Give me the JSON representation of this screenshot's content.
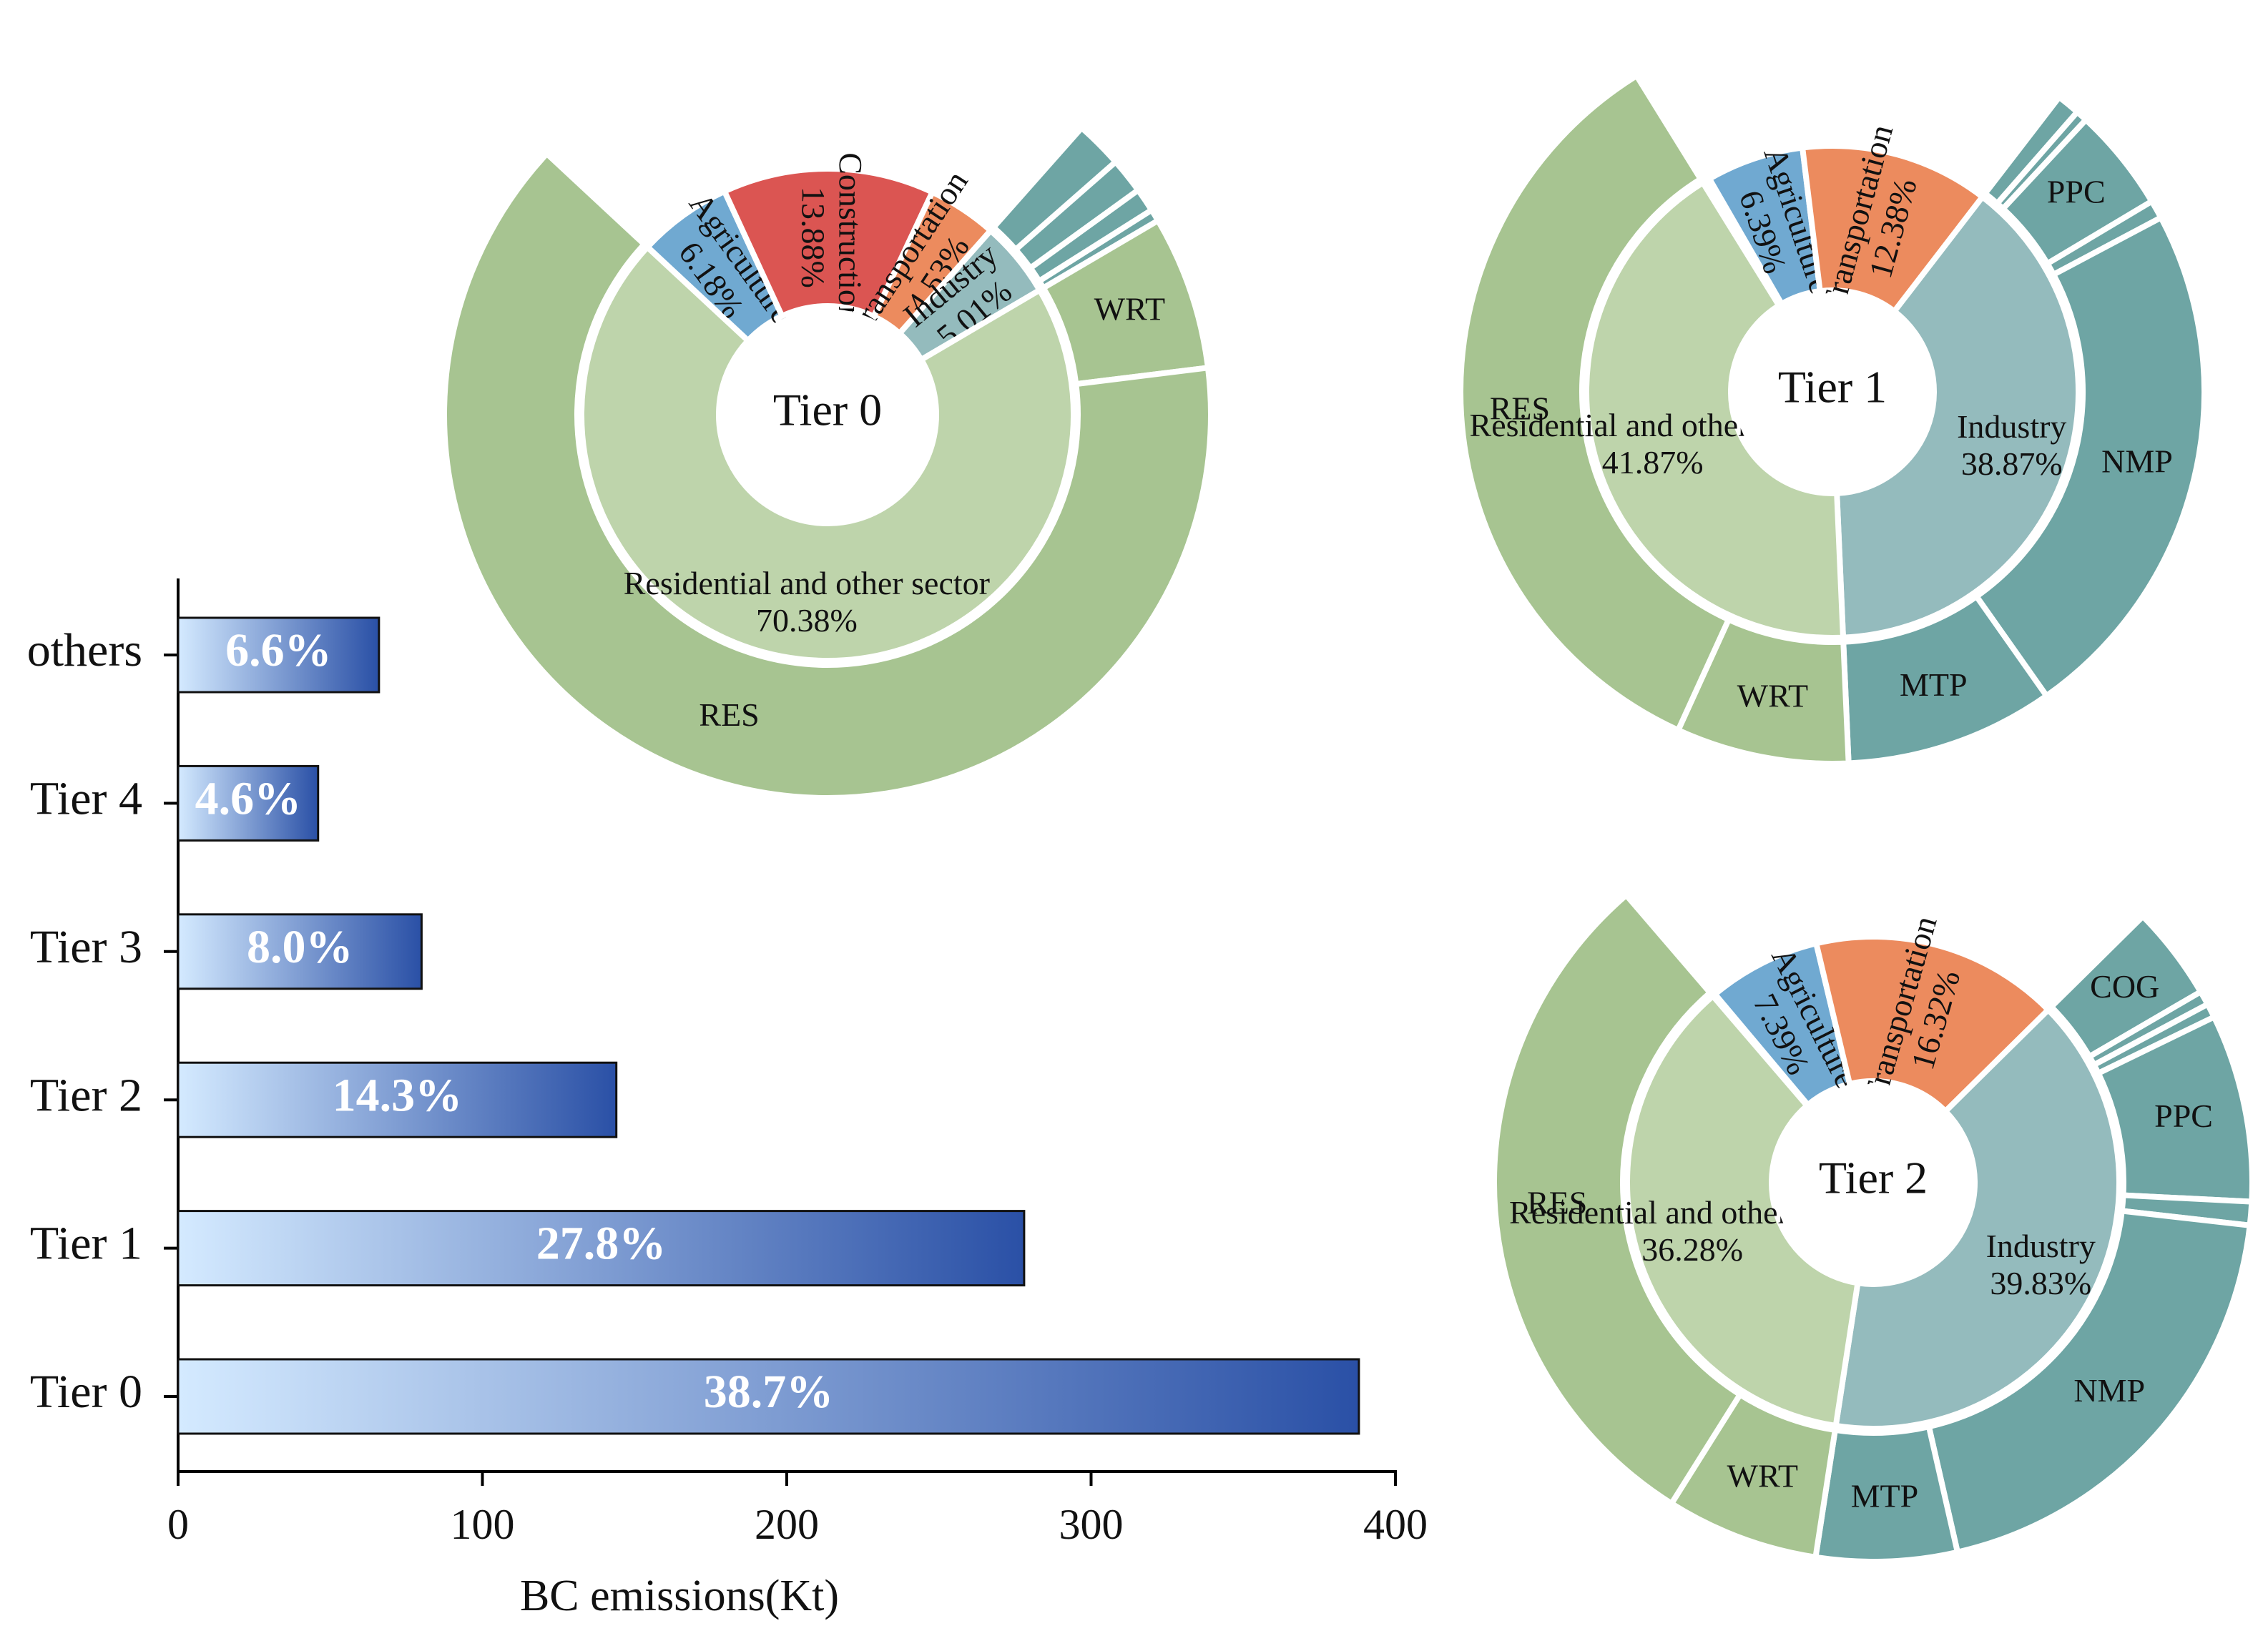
{
  "chart_data": [
    {
      "type": "hbar",
      "categories": [
        "Tier 0",
        "Tier 1",
        "Tier 2",
        "Tier 3",
        "Tier 4",
        "others"
      ],
      "values": [
        388,
        278,
        144,
        80,
        46,
        66
      ],
      "percent_labels": [
        "38.7%",
        "27.8%",
        "14.3%",
        "8.0%",
        "4.6%",
        "6.6%"
      ],
      "xlabel": "BC emissions(Kt)",
      "xlim": [
        0,
        400
      ],
      "xticks": [
        0,
        100,
        200,
        300,
        400
      ],
      "color_from": "#d4eaff",
      "color_to": "#2a50a6"
    },
    {
      "type": "sunburst",
      "center_label": "Tier 0",
      "sectors": [
        {
          "name": "Agriculture",
          "value": 6.18,
          "value_label": "6.18%",
          "color": "#70a9d1",
          "children": []
        },
        {
          "name": "Construction",
          "value": 13.88,
          "value_label": "13.88%",
          "color": "#db5552",
          "children": []
        },
        {
          "name": "Transportation",
          "value": 4.53,
          "value_label": "4.53%",
          "color": "#ec8b5e",
          "children": []
        },
        {
          "name": "Industry",
          "value": 5.01,
          "value_label": "5.01%",
          "color": "#94bbbd",
          "child_color": "#6ea5a4",
          "children": [
            {
              "name": null,
              "value": 2.0
            },
            {
              "name": null,
              "value": 1.5
            },
            {
              "name": null,
              "value": 1.0
            },
            {
              "name": null,
              "value": 0.51
            }
          ]
        },
        {
          "name": "Residential and other sector",
          "value": 70.38,
          "value_label": "70.38%",
          "color": "#bed4ab",
          "child_color": "#a7c491",
          "children": [
            {
              "name": "WRT",
              "value": 6.5
            },
            {
              "name": "RES",
              "value": 63.88
            }
          ]
        }
      ]
    },
    {
      "type": "sunburst",
      "center_label": "Tier 1",
      "sectors": [
        {
          "name": "Agriculture",
          "value": 6.39,
          "value_label": "6.39%",
          "color": "#70a9d1",
          "children": []
        },
        {
          "name": "Transportation",
          "value": 12.38,
          "value_label": "12.38%",
          "color": "#ec8b5e",
          "children": []
        },
        {
          "name": "Industry",
          "value": 38.87,
          "value_label": "38.87%",
          "color": "#94bbbd",
          "child_color": "#6ea5a4",
          "children": [
            {
              "name": null,
              "value": 1.0
            },
            {
              "name": null,
              "value": 0.5
            },
            {
              "name": "PPC",
              "value": 4.5
            },
            {
              "name": null,
              "value": 0.8
            },
            {
              "name": "NMP",
              "value": 23.0
            },
            {
              "name": "MTP",
              "value": 9.07
            }
          ]
        },
        {
          "name": "Residential and other sector",
          "value": 41.87,
          "value_label": "41.87%",
          "color": "#bed4ab",
          "child_color": "#a7c491",
          "children": [
            {
              "name": "WRT",
              "value": 7.5
            },
            {
              "name": "RES",
              "value": 34.37
            }
          ]
        }
      ]
    },
    {
      "type": "sunburst",
      "center_label": "Tier 2",
      "sectors": [
        {
          "name": "Agriculture",
          "value": 7.39,
          "value_label": "7.39%",
          "color": "#70a9d1",
          "children": []
        },
        {
          "name": "Transportation",
          "value": 16.32,
          "value_label": "16.32%",
          "color": "#ec8b5e",
          "children": []
        },
        {
          "name": "Industry",
          "value": 39.83,
          "value_label": "39.83%",
          "color": "#94bbbd",
          "child_color": "#6ea5a4",
          "children": [
            {
              "name": "COG",
              "value": 4.0
            },
            {
              "name": null,
              "value": 0.6
            },
            {
              "name": null,
              "value": 0.6
            },
            {
              "name": "PPC",
              "value": 8.0
            },
            {
              "name": null,
              "value": 1.0
            },
            {
              "name": "NMP",
              "value": 19.63
            },
            {
              "name": "MTP",
              "value": 6.0
            }
          ]
        },
        {
          "name": "Residential and other sector",
          "value": 36.28,
          "value_label": "36.28%",
          "color": "#bed4ab",
          "child_color": "#a7c491",
          "children": [
            {
              "name": "WRT",
              "value": 6.5
            },
            {
              "name": "RES",
              "value": 29.78
            }
          ]
        }
      ]
    }
  ]
}
